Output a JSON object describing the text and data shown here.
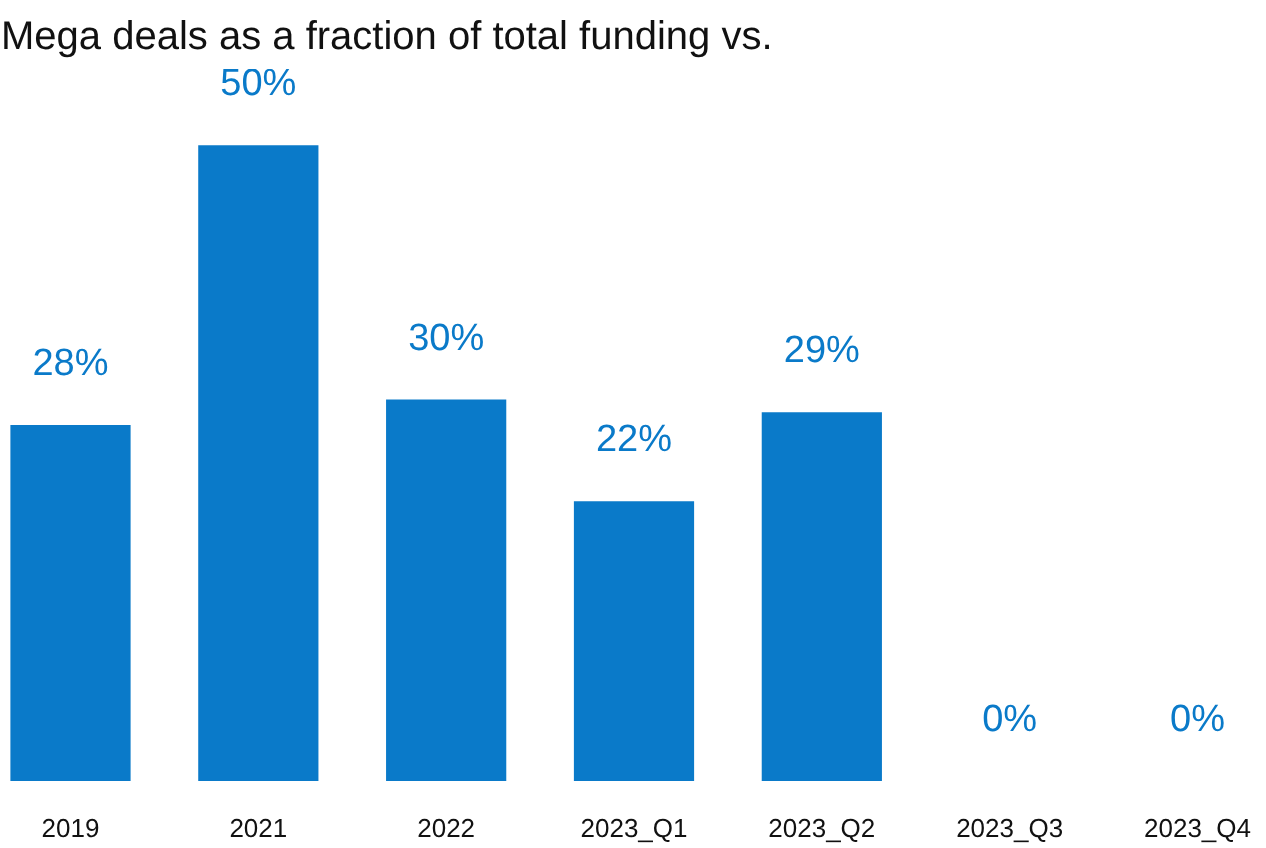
{
  "chart_data": {
    "type": "bar",
    "title": "Mega deals as a fraction of total funding vs.",
    "categories": [
      "2019",
      "2021",
      "2022",
      "2023_Q1",
      "2023_Q2",
      "2023_Q3",
      "2023_Q4"
    ],
    "values": [
      28,
      50,
      30,
      22,
      29,
      0,
      0
    ],
    "value_labels": [
      "28%",
      "50%",
      "30%",
      "22%",
      "29%",
      "0%",
      "0%"
    ],
    "color": "#0a7ac9"
  }
}
